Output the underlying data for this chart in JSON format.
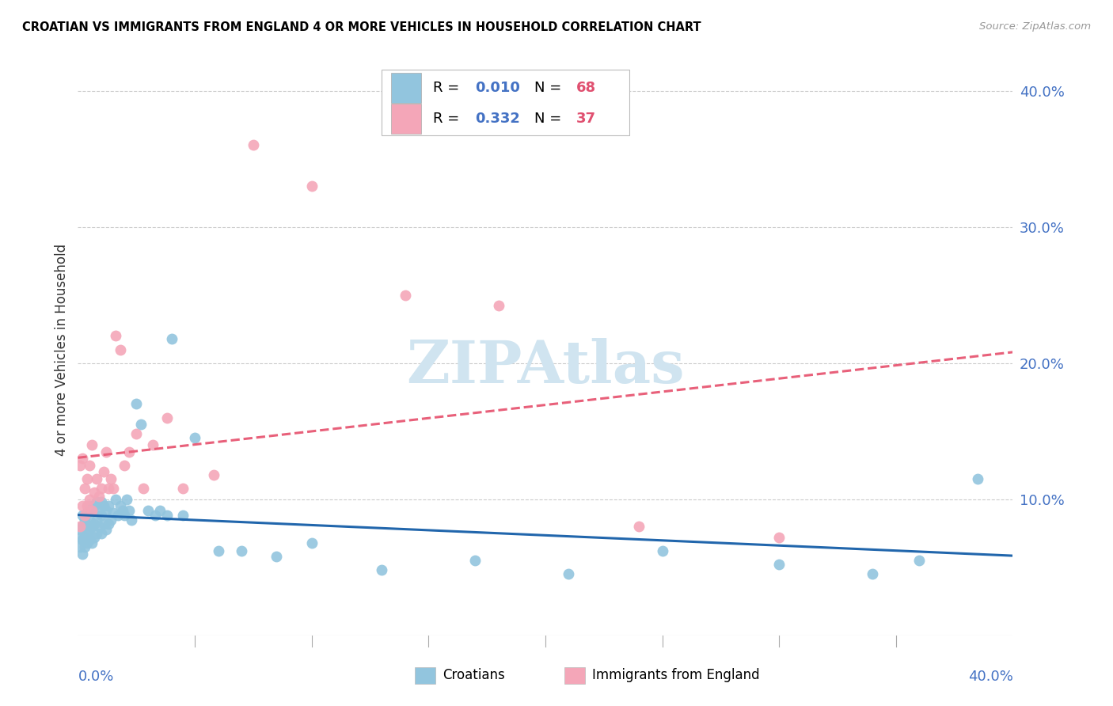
{
  "title": "CROATIAN VS IMMIGRANTS FROM ENGLAND 4 OR MORE VEHICLES IN HOUSEHOLD CORRELATION CHART",
  "source": "Source: ZipAtlas.com",
  "ylabel": "4 or more Vehicles in Household",
  "xlim": [
    0.0,
    0.4
  ],
  "ylim": [
    0.0,
    0.42
  ],
  "color_blue": "#92c5de",
  "color_pink": "#f4a6b8",
  "trendline_blue_color": "#2166ac",
  "trendline_pink_color": "#e8607a",
  "watermark_color": "#d0e4f0",
  "grid_color": "#cccccc",
  "axis_label_color": "#4472c4",
  "yticks": [
    0.1,
    0.2,
    0.3,
    0.4
  ],
  "ytick_labels": [
    "10.0%",
    "20.0%",
    "30.0%",
    "40.0%"
  ],
  "xtick_labels": [
    "0.0%",
    "40.0%"
  ],
  "legend_r1": "0.010",
  "legend_n1": "68",
  "legend_r2": "0.332",
  "legend_n2": "37",
  "croatians_x": [
    0.001,
    0.001,
    0.001,
    0.002,
    0.002,
    0.002,
    0.002,
    0.003,
    0.003,
    0.003,
    0.004,
    0.004,
    0.004,
    0.005,
    0.005,
    0.005,
    0.005,
    0.006,
    0.006,
    0.006,
    0.007,
    0.007,
    0.007,
    0.008,
    0.008,
    0.008,
    0.009,
    0.009,
    0.01,
    0.01,
    0.01,
    0.011,
    0.011,
    0.012,
    0.012,
    0.013,
    0.013,
    0.014,
    0.015,
    0.016,
    0.017,
    0.018,
    0.019,
    0.02,
    0.021,
    0.022,
    0.023,
    0.025,
    0.027,
    0.03,
    0.033,
    0.035,
    0.038,
    0.04,
    0.045,
    0.05,
    0.06,
    0.07,
    0.085,
    0.1,
    0.13,
    0.17,
    0.21,
    0.25,
    0.3,
    0.34,
    0.36,
    0.385
  ],
  "croatians_y": [
    0.065,
    0.072,
    0.078,
    0.06,
    0.07,
    0.08,
    0.088,
    0.065,
    0.072,
    0.085,
    0.068,
    0.075,
    0.09,
    0.07,
    0.078,
    0.085,
    0.095,
    0.068,
    0.08,
    0.092,
    0.072,
    0.082,
    0.095,
    0.075,
    0.085,
    0.098,
    0.08,
    0.092,
    0.075,
    0.088,
    0.098,
    0.082,
    0.095,
    0.078,
    0.092,
    0.082,
    0.095,
    0.085,
    0.09,
    0.1,
    0.088,
    0.095,
    0.092,
    0.088,
    0.1,
    0.092,
    0.085,
    0.17,
    0.155,
    0.092,
    0.088,
    0.092,
    0.088,
    0.218,
    0.088,
    0.145,
    0.062,
    0.062,
    0.058,
    0.068,
    0.048,
    0.055,
    0.045,
    0.062,
    0.052,
    0.045,
    0.055,
    0.115
  ],
  "england_x": [
    0.001,
    0.001,
    0.002,
    0.002,
    0.003,
    0.003,
    0.004,
    0.004,
    0.005,
    0.005,
    0.006,
    0.006,
    0.007,
    0.008,
    0.009,
    0.01,
    0.011,
    0.012,
    0.013,
    0.014,
    0.015,
    0.016,
    0.018,
    0.02,
    0.022,
    0.025,
    0.028,
    0.032,
    0.038,
    0.045,
    0.058,
    0.075,
    0.1,
    0.14,
    0.18,
    0.24,
    0.3
  ],
  "england_y": [
    0.08,
    0.125,
    0.095,
    0.13,
    0.088,
    0.108,
    0.095,
    0.115,
    0.1,
    0.125,
    0.092,
    0.14,
    0.105,
    0.115,
    0.102,
    0.108,
    0.12,
    0.135,
    0.108,
    0.115,
    0.108,
    0.22,
    0.21,
    0.125,
    0.135,
    0.148,
    0.108,
    0.14,
    0.16,
    0.108,
    0.118,
    0.36,
    0.33,
    0.25,
    0.242,
    0.08,
    0.072
  ]
}
